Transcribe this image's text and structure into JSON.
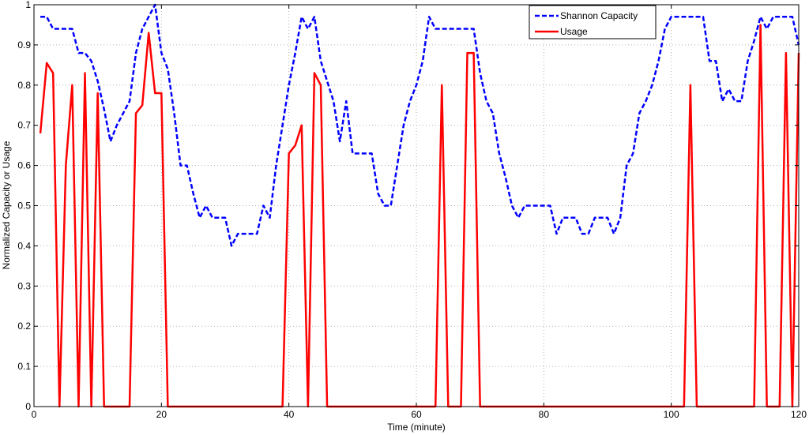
{
  "chart_data": {
    "type": "line",
    "title": "",
    "xlabel": "Time (minute)",
    "ylabel": "Normalized Capacity or Usage",
    "xlim": [
      0,
      120
    ],
    "ylim": [
      0,
      1
    ],
    "x_ticks": [
      "0",
      "20",
      "40",
      "60",
      "80",
      "100",
      "120"
    ],
    "y_ticks": [
      "0",
      "0.1",
      "0.2",
      "0.3",
      "0.4",
      "0.5",
      "0.6",
      "0.7",
      "0.8",
      "0.9",
      "1"
    ],
    "grid": true,
    "legend_position": "top-right",
    "series": [
      {
        "name": "Shannon Capacity",
        "color": "#0000ff",
        "style": "dashed",
        "points": [
          [
            1,
            0.97
          ],
          [
            2,
            0.97
          ],
          [
            3,
            0.94
          ],
          [
            4,
            0.94
          ],
          [
            5,
            0.94
          ],
          [
            6,
            0.94
          ],
          [
            7,
            0.88
          ],
          [
            8,
            0.88
          ],
          [
            9,
            0.86
          ],
          [
            10,
            0.81
          ],
          [
            11,
            0.74
          ],
          [
            12,
            0.66
          ],
          [
            13,
            0.7
          ],
          [
            14,
            0.73
          ],
          [
            15,
            0.76
          ],
          [
            16,
            0.88
          ],
          [
            17,
            0.94
          ],
          [
            18,
            0.97
          ],
          [
            19,
            1.0
          ],
          [
            20,
            0.88
          ],
          [
            21,
            0.84
          ],
          [
            22,
            0.73
          ],
          [
            23,
            0.6
          ],
          [
            24,
            0.6
          ],
          [
            25,
            0.53
          ],
          [
            26,
            0.47
          ],
          [
            27,
            0.5
          ],
          [
            28,
            0.47
          ],
          [
            29,
            0.47
          ],
          [
            30,
            0.47
          ],
          [
            31,
            0.4
          ],
          [
            32,
            0.43
          ],
          [
            33,
            0.43
          ],
          [
            34,
            0.43
          ],
          [
            35,
            0.43
          ],
          [
            36,
            0.5
          ],
          [
            37,
            0.47
          ],
          [
            38,
            0.6
          ],
          [
            39,
            0.7
          ],
          [
            40,
            0.8
          ],
          [
            41,
            0.88
          ],
          [
            42,
            0.97
          ],
          [
            43,
            0.94
          ],
          [
            44,
            0.97
          ],
          [
            45,
            0.86
          ],
          [
            46,
            0.81
          ],
          [
            47,
            0.76
          ],
          [
            48,
            0.66
          ],
          [
            49,
            0.76
          ],
          [
            50,
            0.63
          ],
          [
            51,
            0.63
          ],
          [
            52,
            0.63
          ],
          [
            53,
            0.63
          ],
          [
            54,
            0.53
          ],
          [
            55,
            0.5
          ],
          [
            56,
            0.5
          ],
          [
            57,
            0.6
          ],
          [
            58,
            0.7
          ],
          [
            59,
            0.76
          ],
          [
            60,
            0.8
          ],
          [
            61,
            0.86
          ],
          [
            62,
            0.97
          ],
          [
            63,
            0.94
          ],
          [
            64,
            0.94
          ],
          [
            65,
            0.94
          ],
          [
            66,
            0.94
          ],
          [
            67,
            0.94
          ],
          [
            68,
            0.94
          ],
          [
            69,
            0.94
          ],
          [
            70,
            0.83
          ],
          [
            71,
            0.76
          ],
          [
            72,
            0.73
          ],
          [
            73,
            0.63
          ],
          [
            74,
            0.57
          ],
          [
            75,
            0.5
          ],
          [
            76,
            0.47
          ],
          [
            77,
            0.5
          ],
          [
            78,
            0.5
          ],
          [
            79,
            0.5
          ],
          [
            80,
            0.5
          ],
          [
            81,
            0.5
          ],
          [
            82,
            0.43
          ],
          [
            83,
            0.47
          ],
          [
            84,
            0.47
          ],
          [
            85,
            0.47
          ],
          [
            86,
            0.43
          ],
          [
            87,
            0.43
          ],
          [
            88,
            0.47
          ],
          [
            89,
            0.47
          ],
          [
            90,
            0.47
          ],
          [
            91,
            0.43
          ],
          [
            92,
            0.47
          ],
          [
            93,
            0.6
          ],
          [
            94,
            0.63
          ],
          [
            95,
            0.73
          ],
          [
            96,
            0.76
          ],
          [
            97,
            0.8
          ],
          [
            98,
            0.86
          ],
          [
            99,
            0.94
          ],
          [
            100,
            0.97
          ],
          [
            101,
            0.97
          ],
          [
            102,
            0.97
          ],
          [
            103,
            0.97
          ],
          [
            104,
            0.97
          ],
          [
            105,
            0.97
          ],
          [
            106,
            0.86
          ],
          [
            107,
            0.86
          ],
          [
            108,
            0.76
          ],
          [
            109,
            0.79
          ],
          [
            110,
            0.76
          ],
          [
            111,
            0.76
          ],
          [
            112,
            0.86
          ],
          [
            113,
            0.91
          ],
          [
            114,
            0.97
          ],
          [
            115,
            0.94
          ],
          [
            116,
            0.97
          ],
          [
            117,
            0.97
          ],
          [
            118,
            0.97
          ],
          [
            119,
            0.97
          ],
          [
            120,
            0.9
          ]
        ]
      },
      {
        "name": "Usage",
        "color": "#ff0000",
        "style": "solid",
        "points": [
          [
            1,
            0.68
          ],
          [
            2,
            0.855
          ],
          [
            3,
            0.83
          ],
          [
            4,
            0
          ],
          [
            5,
            0.6
          ],
          [
            6,
            0.8
          ],
          [
            7,
            0
          ],
          [
            8,
            0.83
          ],
          [
            9,
            0
          ],
          [
            10,
            0.78
          ],
          [
            11,
            0
          ],
          [
            15,
            0
          ],
          [
            16,
            0.73
          ],
          [
            17,
            0.75
          ],
          [
            18,
            0.93
          ],
          [
            19,
            0.78
          ],
          [
            20,
            0.78
          ],
          [
            21,
            0
          ],
          [
            39,
            0
          ],
          [
            40,
            0.63
          ],
          [
            41,
            0.65
          ],
          [
            42,
            0.7
          ],
          [
            43,
            0
          ],
          [
            44,
            0.83
          ],
          [
            45,
            0.8
          ],
          [
            46,
            0
          ],
          [
            63,
            0
          ],
          [
            64,
            0.8
          ],
          [
            65,
            0
          ],
          [
            67,
            0
          ],
          [
            68,
            0.88
          ],
          [
            69,
            0.88
          ],
          [
            70,
            0
          ],
          [
            102,
            0
          ],
          [
            103,
            0.8
          ],
          [
            104,
            0
          ],
          [
            113,
            0
          ],
          [
            114,
            0.95
          ],
          [
            115,
            0
          ],
          [
            117,
            0
          ],
          [
            118,
            0.88
          ],
          [
            119,
            0
          ],
          [
            120,
            0.88
          ]
        ]
      }
    ]
  }
}
